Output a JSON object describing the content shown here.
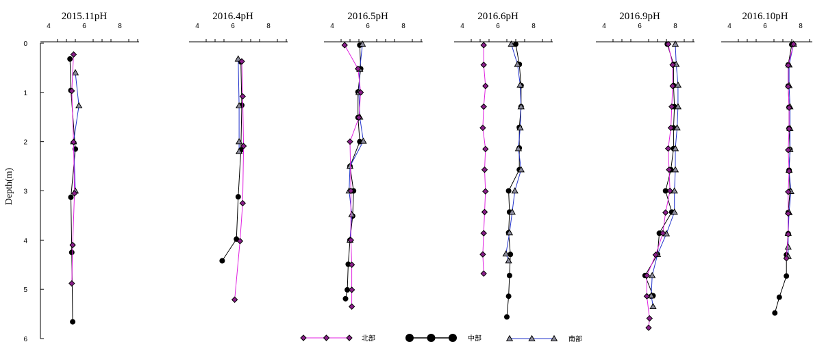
{
  "chart_data": {
    "type": "line",
    "ylabel": "Depth(m)",
    "ylim": [
      0,
      6
    ],
    "y_ticks": [
      0,
      1,
      2,
      3,
      4,
      5,
      6
    ],
    "x_ticks": [
      4,
      6,
      8
    ],
    "xlim": [
      4,
      9
    ],
    "series_styles": [
      {
        "key": "north",
        "name": "北部",
        "color": "#e020e0",
        "marker": "diamond",
        "marker_fill": "#8a1f8a"
      },
      {
        "key": "middle",
        "name": "中部",
        "color": "#000000",
        "marker": "circle",
        "marker_fill": "#000000"
      },
      {
        "key": "south",
        "name": "南部",
        "color": "#2233cc",
        "marker": "triangle",
        "marker_fill": "#8c8c9c"
      }
    ],
    "panels": [
      {
        "title": "2015.11pH",
        "series": {
          "north": [
            [
              5.4,
              0.23
            ],
            [
              5.3,
              0.97
            ],
            [
              5.4,
              2.01
            ],
            [
              5.45,
              3.05
            ],
            [
              5.35,
              4.1
            ],
            [
              5.3,
              4.88
            ]
          ],
          "middle": [
            [
              5.2,
              0.32
            ],
            [
              5.25,
              0.96
            ],
            [
              5.5,
              2.15
            ],
            [
              5.25,
              3.13
            ],
            [
              5.3,
              4.25
            ],
            [
              5.35,
              5.66
            ]
          ],
          "south": [
            [
              5.5,
              0.6
            ],
            [
              5.7,
              1.27
            ],
            [
              5.4,
              2.0
            ],
            [
              5.5,
              3.0
            ]
          ]
        }
      },
      {
        "title": "2016.4pH",
        "series": {
          "north": [
            [
              6.5,
              0.37
            ],
            [
              6.55,
              1.08
            ],
            [
              6.6,
              2.09
            ],
            [
              6.55,
              3.25
            ],
            [
              6.4,
              4.02
            ],
            [
              6.1,
              5.21
            ]
          ],
          "middle": [
            [
              6.45,
              0.38
            ],
            [
              6.5,
              1.26
            ],
            [
              6.45,
              2.17
            ],
            [
              6.3,
              3.12
            ],
            [
              6.2,
              3.98
            ],
            [
              5.4,
              4.42
            ]
          ],
          "south": [
            [
              6.3,
              0.32
            ],
            [
              6.35,
              1.27
            ],
            [
              6.35,
              2.0
            ],
            [
              6.35,
              2.2
            ]
          ]
        }
      },
      {
        "title": "2016.5pH",
        "series": {
          "north": [
            [
              4.7,
              0.04
            ],
            [
              5.45,
              0.52
            ],
            [
              5.6,
              1.0
            ],
            [
              5.5,
              1.51
            ],
            [
              5.0,
              2.0
            ],
            [
              5.05,
              3.0
            ],
            [
              5.05,
              4.0
            ],
            [
              5.1,
              4.5
            ],
            [
              5.1,
              5.01
            ],
            [
              5.1,
              5.35
            ]
          ],
          "middle": [
            [
              5.55,
              0.04
            ],
            [
              5.6,
              0.52
            ],
            [
              5.45,
              0.99
            ],
            [
              5.45,
              1.51
            ],
            [
              5.55,
              2.0
            ],
            [
              5.0,
              2.5
            ],
            [
              5.2,
              3.0
            ],
            [
              5.15,
              3.51
            ],
            [
              5.0,
              4.0
            ],
            [
              4.9,
              4.49
            ],
            [
              4.85,
              5.01
            ],
            [
              4.75,
              5.19
            ]
          ],
          "south": [
            [
              5.7,
              0.02
            ],
            [
              5.55,
              0.53
            ],
            [
              5.5,
              1.0
            ],
            [
              5.55,
              1.5
            ],
            [
              5.75,
              1.99
            ],
            [
              5.0,
              2.5
            ],
            [
              4.95,
              3.0
            ],
            [
              5.1,
              3.48
            ],
            [
              5.0,
              4.0
            ]
          ]
        }
      },
      {
        "title": "2016.6pH",
        "series": {
          "north": [
            [
              5.2,
              0.04
            ],
            [
              5.2,
              0.44
            ],
            [
              5.3,
              0.87
            ],
            [
              5.2,
              1.29
            ],
            [
              5.15,
              1.72
            ],
            [
              5.3,
              2.15
            ],
            [
              5.25,
              2.57
            ],
            [
              5.3,
              3.01
            ],
            [
              5.25,
              3.43
            ],
            [
              5.2,
              3.86
            ],
            [
              5.15,
              4.29
            ],
            [
              5.2,
              4.68
            ]
          ],
          "middle": [
            [
              7.0,
              0.02
            ],
            [
              7.2,
              0.43
            ],
            [
              7.3,
              0.86
            ],
            [
              7.3,
              1.29
            ],
            [
              7.2,
              1.71
            ],
            [
              7.2,
              2.13
            ],
            [
              7.2,
              2.57
            ],
            [
              6.6,
              3.0
            ],
            [
              6.65,
              3.43
            ],
            [
              6.6,
              3.85
            ],
            [
              6.7,
              4.29
            ],
            [
              6.65,
              4.72
            ],
            [
              6.6,
              5.14
            ],
            [
              6.5,
              5.56
            ]
          ],
          "south": [
            [
              6.75,
              0.02
            ],
            [
              7.1,
              0.43
            ],
            [
              7.25,
              0.85
            ],
            [
              7.3,
              1.29
            ],
            [
              7.25,
              1.72
            ],
            [
              7.15,
              2.14
            ],
            [
              7.3,
              2.57
            ],
            [
              6.95,
              3.0
            ],
            [
              6.8,
              3.43
            ],
            [
              6.65,
              3.85
            ],
            [
              6.45,
              4.28
            ],
            [
              6.6,
              4.42
            ]
          ]
        }
      },
      {
        "title": "2016.9pH",
        "series": {
          "north": [
            [
              7.6,
              0.02
            ],
            [
              7.85,
              0.44
            ],
            [
              7.85,
              0.87
            ],
            [
              7.8,
              1.29
            ],
            [
              7.75,
              1.72
            ],
            [
              7.6,
              2.14
            ],
            [
              7.65,
              2.57
            ],
            [
              7.7,
              3.0
            ],
            [
              7.45,
              3.44
            ],
            [
              7.3,
              3.86
            ],
            [
              6.9,
              4.3
            ],
            [
              6.4,
              4.72
            ],
            [
              6.4,
              5.14
            ],
            [
              6.55,
              5.59
            ],
            [
              6.5,
              5.78
            ]
          ],
          "middle": [
            [
              7.55,
              0.02
            ],
            [
              7.9,
              0.43
            ],
            [
              7.9,
              0.86
            ],
            [
              7.95,
              1.29
            ],
            [
              7.9,
              1.72
            ],
            [
              7.9,
              2.14
            ],
            [
              7.75,
              2.57
            ],
            [
              7.45,
              3.0
            ],
            [
              7.8,
              3.43
            ],
            [
              7.1,
              3.86
            ],
            [
              7.0,
              4.29
            ],
            [
              6.3,
              4.72
            ],
            [
              6.75,
              5.13
            ],
            [
              6.65,
              5.14
            ]
          ],
          "south": [
            [
              8.0,
              0.02
            ],
            [
              8.05,
              0.43
            ],
            [
              8.15,
              0.85
            ],
            [
              8.15,
              1.29
            ],
            [
              8.1,
              1.72
            ],
            [
              8.0,
              2.14
            ],
            [
              8.0,
              2.57
            ],
            [
              7.95,
              3.0
            ],
            [
              7.95,
              3.43
            ],
            [
              7.5,
              3.87
            ],
            [
              7.0,
              4.29
            ],
            [
              6.7,
              4.72
            ],
            [
              6.65,
              5.13
            ],
            [
              6.75,
              5.35
            ]
          ]
        }
      },
      {
        "title": "2016.10pH",
        "series": {
          "north": [
            [
              7.6,
              0.02
            ],
            [
              7.3,
              0.45
            ],
            [
              7.3,
              0.88
            ],
            [
              7.35,
              1.31
            ],
            [
              7.35,
              1.74
            ],
            [
              7.3,
              2.17
            ],
            [
              7.35,
              2.6
            ],
            [
              7.3,
              3.02
            ],
            [
              7.3,
              3.46
            ],
            [
              7.3,
              3.88
            ],
            [
              7.2,
              4.37
            ]
          ],
          "middle": [
            [
              7.5,
              0.03
            ],
            [
              7.3,
              0.44
            ],
            [
              7.3,
              0.87
            ],
            [
              7.35,
              1.3
            ],
            [
              7.35,
              1.73
            ],
            [
              7.4,
              2.16
            ],
            [
              7.35,
              2.58
            ],
            [
              7.4,
              3.01
            ],
            [
              7.3,
              3.44
            ],
            [
              7.3,
              3.87
            ],
            [
              7.2,
              4.3
            ],
            [
              7.2,
              4.73
            ],
            [
              6.8,
              5.16
            ],
            [
              6.55,
              5.48
            ]
          ],
          "south": [
            [
              7.6,
              0.02
            ],
            [
              7.35,
              0.44
            ],
            [
              7.35,
              0.86
            ],
            [
              7.4,
              1.29
            ],
            [
              7.4,
              1.73
            ],
            [
              7.4,
              2.16
            ],
            [
              7.35,
              2.58
            ],
            [
              7.45,
              3.01
            ],
            [
              7.35,
              3.44
            ],
            [
              7.3,
              3.86
            ],
            [
              7.3,
              4.14
            ],
            [
              7.3,
              4.33
            ]
          ]
        }
      }
    ]
  }
}
